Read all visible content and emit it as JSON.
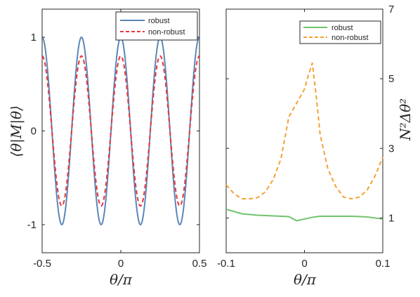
{
  "chart_data": [
    {
      "type": "line",
      "xlabel": "θ/π",
      "ylabel": "⟨θ|M|θ⟩",
      "xlim": [
        -0.5,
        0.5
      ],
      "ylim": [
        -1.3,
        1.3
      ],
      "xticks": [
        -0.5,
        0,
        0.5
      ],
      "xtick_labels": [
        "-0.5",
        "0",
        "0.5"
      ],
      "yticks": [
        -1,
        0,
        1
      ],
      "ytick_labels": [
        "-1",
        "0",
        "1"
      ],
      "grid": false,
      "legend_position": "top-right",
      "series": [
        {
          "name": "robust",
          "color": "#5b87b8",
          "style": "solid",
          "function": "cos(8πx)",
          "amplitude": 1.0
        },
        {
          "name": "non-robust",
          "color": "#e8373c",
          "style": "dashed",
          "function": "cos(8πx)",
          "amplitude": 0.8
        }
      ]
    },
    {
      "type": "line",
      "xlabel": "θ/π",
      "ylabel": "N²Δθ²",
      "y_axis_side": "right",
      "xlim": [
        -0.1,
        0.1
      ],
      "ylim": [
        0,
        7
      ],
      "xticks": [
        -0.1,
        0,
        0.1
      ],
      "xtick_labels": [
        "-0.1",
        "0",
        "0.1"
      ],
      "yticks": [
        1,
        3,
        5,
        7
      ],
      "ytick_labels": [
        "1",
        "3",
        "5",
        "7"
      ],
      "grid": false,
      "legend_position": "top-right",
      "series": [
        {
          "name": "robust",
          "color": "#6fc36c",
          "style": "solid",
          "x": [
            -0.1,
            -0.08,
            -0.06,
            -0.04,
            -0.02,
            -0.01,
            0.0,
            0.01,
            0.02,
            0.04,
            0.06,
            0.08,
            0.1
          ],
          "y": [
            1.25,
            1.12,
            1.08,
            1.06,
            1.04,
            0.92,
            0.97,
            1.02,
            1.05,
            1.05,
            1.05,
            1.03,
            0.97
          ]
        },
        {
          "name": "non-robust",
          "color": "#f5a133",
          "style": "dashed",
          "x": [
            -0.1,
            -0.09,
            -0.08,
            -0.07,
            -0.06,
            -0.05,
            -0.04,
            -0.03,
            -0.02,
            -0.015,
            -0.01,
            -0.005,
            0.0,
            0.005,
            0.01,
            0.015,
            0.02,
            0.03,
            0.04,
            0.05,
            0.06,
            0.07,
            0.08,
            0.09,
            0.1
          ],
          "y": [
            1.95,
            1.7,
            1.55,
            1.55,
            1.58,
            1.75,
            2.1,
            2.7,
            3.9,
            4.1,
            4.3,
            4.5,
            4.7,
            5.1,
            5.45,
            4.5,
            3.4,
            2.4,
            1.9,
            1.6,
            1.55,
            1.6,
            1.8,
            2.2,
            2.75
          ]
        }
      ]
    }
  ]
}
